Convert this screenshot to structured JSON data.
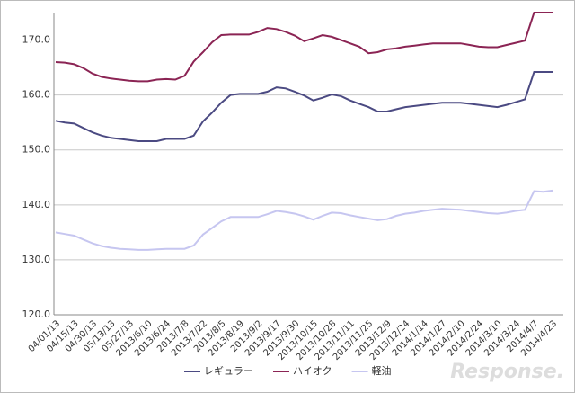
{
  "chart_data": {
    "type": "line",
    "categories": [
      "04/01/13",
      null,
      "04/15/13",
      null,
      "04/30/13",
      null,
      "05/13/13",
      null,
      "05/27/13",
      null,
      "2013/6/10",
      null,
      "2013/6/24",
      null,
      "2013/7/8",
      null,
      "2013/7/22",
      null,
      "2013/8/5",
      null,
      "2013/8/19",
      null,
      "2013/9/2",
      null,
      "2013/9/17",
      null,
      "2013/9/30",
      null,
      "2013/10/15",
      null,
      "2013/10/28",
      null,
      "2013/11/11",
      null,
      "2013/11/25",
      null,
      "2013/12/9",
      null,
      "2013/12/24",
      null,
      "2014/1/14",
      null,
      "2014/1/27",
      null,
      "2014/2/10",
      null,
      "2014/2/24",
      null,
      "2014/3/10",
      null,
      "2014/3/24",
      null,
      "2014/4/7",
      null,
      "2014/4/23"
    ],
    "series": [
      {
        "name": "レギュラー",
        "color": "#4b4a82",
        "values": [
          155.3,
          155.0,
          154.8,
          154.0,
          153.2,
          152.6,
          152.2,
          152.0,
          151.8,
          151.6,
          151.6,
          151.6,
          152.0,
          152.0,
          152.0,
          152.6,
          155.2,
          156.8,
          158.6,
          160.0,
          160.2,
          160.2,
          160.2,
          160.6,
          161.4,
          161.2,
          160.6,
          159.9,
          159.0,
          159.5,
          160.1,
          159.8,
          159.0,
          158.4,
          157.8,
          157.0,
          157.0,
          157.4,
          157.8,
          158.0,
          158.2,
          158.4,
          158.6,
          158.6,
          158.6,
          158.4,
          158.2,
          158.0,
          157.8,
          158.2,
          158.7,
          159.2,
          164.2,
          164.2,
          164.2
        ]
      },
      {
        "name": "ハイオク",
        "color": "#8b2454",
        "values": [
          166.0,
          165.9,
          165.6,
          164.9,
          163.9,
          163.3,
          163.0,
          162.8,
          162.6,
          162.5,
          162.5,
          162.8,
          162.9,
          162.8,
          163.5,
          166.1,
          167.8,
          169.6,
          170.9,
          171.0,
          171.0,
          171.0,
          171.5,
          172.2,
          172.0,
          171.5,
          170.8,
          169.8,
          170.3,
          170.9,
          170.6,
          170.0,
          169.4,
          168.8,
          167.6,
          167.8,
          168.3,
          168.5,
          168.8,
          169.0,
          169.2,
          169.4,
          169.4,
          169.4,
          169.4,
          169.1,
          168.8,
          168.7,
          168.7,
          169.1,
          169.5,
          169.9,
          175.0,
          175.0,
          175.0
        ]
      },
      {
        "name": "軽油",
        "color": "#c6c6f0",
        "values": [
          135.0,
          134.7,
          134.4,
          133.7,
          133.0,
          132.5,
          132.2,
          132.0,
          131.9,
          131.8,
          131.8,
          131.9,
          132.0,
          132.0,
          132.0,
          132.6,
          134.6,
          135.8,
          137.0,
          137.8,
          137.8,
          137.8,
          137.8,
          138.3,
          138.9,
          138.7,
          138.4,
          137.9,
          137.3,
          138.0,
          138.6,
          138.5,
          138.1,
          137.8,
          137.5,
          137.2,
          137.4,
          138.0,
          138.4,
          138.6,
          138.9,
          139.1,
          139.3,
          139.2,
          139.1,
          138.9,
          138.7,
          138.5,
          138.4,
          138.6,
          138.9,
          139.1,
          142.5,
          142.4,
          142.6
        ]
      }
    ],
    "ylim": [
      120,
      175
    ],
    "yticks": [
      {
        "value": 120,
        "label": "120.0"
      },
      {
        "value": 130,
        "label": "130.0"
      },
      {
        "value": 140,
        "label": "140.0"
      },
      {
        "value": 150,
        "label": "150.0"
      },
      {
        "value": 160,
        "label": "160.0"
      },
      {
        "value": 170,
        "label": "170.0"
      }
    ],
    "grid": true,
    "legend": "bottom",
    "watermark": "Response."
  }
}
